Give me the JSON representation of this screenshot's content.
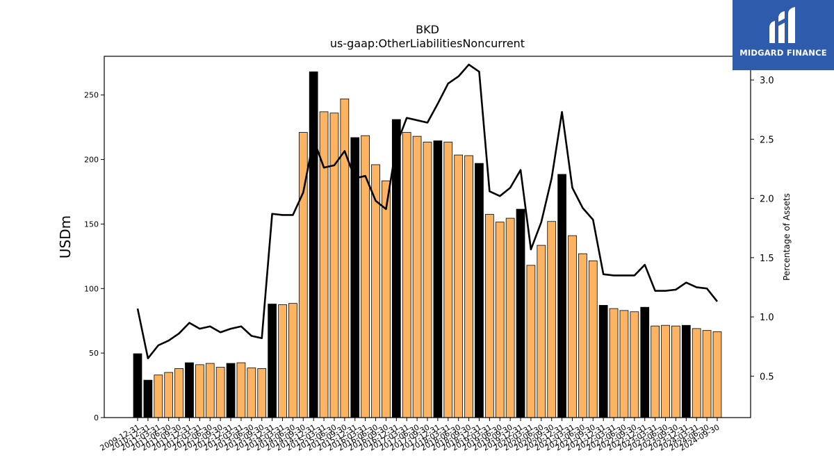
{
  "logo": {
    "text": "MIDGARD FINANCE"
  },
  "chart_data": {
    "type": "bar",
    "title": "BKD",
    "subtitle": "us-gaap:OtherLiabilitiesNoncurrent",
    "ylabel": "USDm",
    "y2label": "Percentage of Assets",
    "ylim": [
      0,
      280
    ],
    "y2lim": [
      0.15,
      3.2
    ],
    "yticks": [
      0,
      50,
      100,
      150,
      200,
      250
    ],
    "y2ticks": [
      0.5,
      1.0,
      1.5,
      2.0,
      2.5,
      3.0
    ],
    "colors": {
      "q4_bar": "#000000",
      "other_bar": "#fdb462",
      "bar_edge": "#000000",
      "line": "#000000"
    },
    "categories": [
      "2009-12-31",
      "2010-12-31",
      "2011-03-31",
      "2011-06-30",
      "2011-09-30",
      "2011-12-31",
      "2012-03-31",
      "2012-06-30",
      "2012-09-30",
      "2012-12-31",
      "2013-03-31",
      "2013-06-30",
      "2013-09-30",
      "2013-12-31",
      "2014-03-31",
      "2014-06-30",
      "2014-09-30",
      "2014-12-31",
      "2015-03-31",
      "2015-06-30",
      "2015-09-30",
      "2015-12-31",
      "2016-03-31",
      "2016-06-30",
      "2016-09-30",
      "2016-12-31",
      "2017-03-31",
      "2017-06-30",
      "2017-09-30",
      "2017-12-31",
      "2018-03-31",
      "2018-06-30",
      "2018-09-30",
      "2018-12-31",
      "2019-03-31",
      "2019-06-30",
      "2019-09-30",
      "2019-12-31",
      "2020-03-31",
      "2020-06-30",
      "2020-09-30",
      "2020-12-31",
      "2021-03-31",
      "2021-06-30",
      "2021-09-30",
      "2021-12-31",
      "2022-03-31",
      "2022-06-30",
      "2022-09-30",
      "2022-12-31",
      "2023-03-31",
      "2023-06-30",
      "2023-09-30",
      "2023-12-31",
      "2024-03-31",
      "2024-06-30",
      "2024-09-30"
    ],
    "values": [
      49.5,
      29,
      33,
      35,
      38,
      42.5,
      41,
      42,
      39,
      42,
      42.5,
      38.5,
      38,
      88,
      87.5,
      88.5,
      221,
      268,
      237,
      236,
      247,
      217,
      218.5,
      196,
      183.5,
      231,
      221,
      218,
      213.5,
      214.5,
      213.5,
      203.5,
      203,
      197,
      157.5,
      151.5,
      154.5,
      161.5,
      118,
      133.5,
      152,
      188.5,
      141,
      127,
      121.5,
      87,
      84.5,
      83,
      82,
      85.5,
      71,
      71.5,
      71,
      71.5,
      69,
      67.5,
      66.5
    ],
    "series": [
      {
        "name": "Percentage of Assets",
        "values": [
          1.07,
          0.65,
          0.76,
          0.8,
          0.86,
          0.95,
          0.9,
          0.92,
          0.87,
          0.9,
          0.92,
          0.84,
          0.82,
          1.87,
          1.86,
          1.86,
          2.05,
          2.5,
          2.26,
          2.28,
          2.4,
          2.17,
          2.19,
          1.98,
          1.91,
          2.45,
          2.68,
          2.66,
          2.64,
          2.8,
          2.97,
          3.03,
          3.13,
          3.07,
          2.06,
          2.02,
          2.09,
          2.24,
          1.57,
          1.8,
          2.17,
          2.73,
          2.09,
          1.92,
          1.82,
          1.36,
          1.35,
          1.35,
          1.35,
          1.44,
          1.22,
          1.22,
          1.23,
          1.29,
          1.25,
          1.24,
          1.13
        ]
      }
    ]
  }
}
